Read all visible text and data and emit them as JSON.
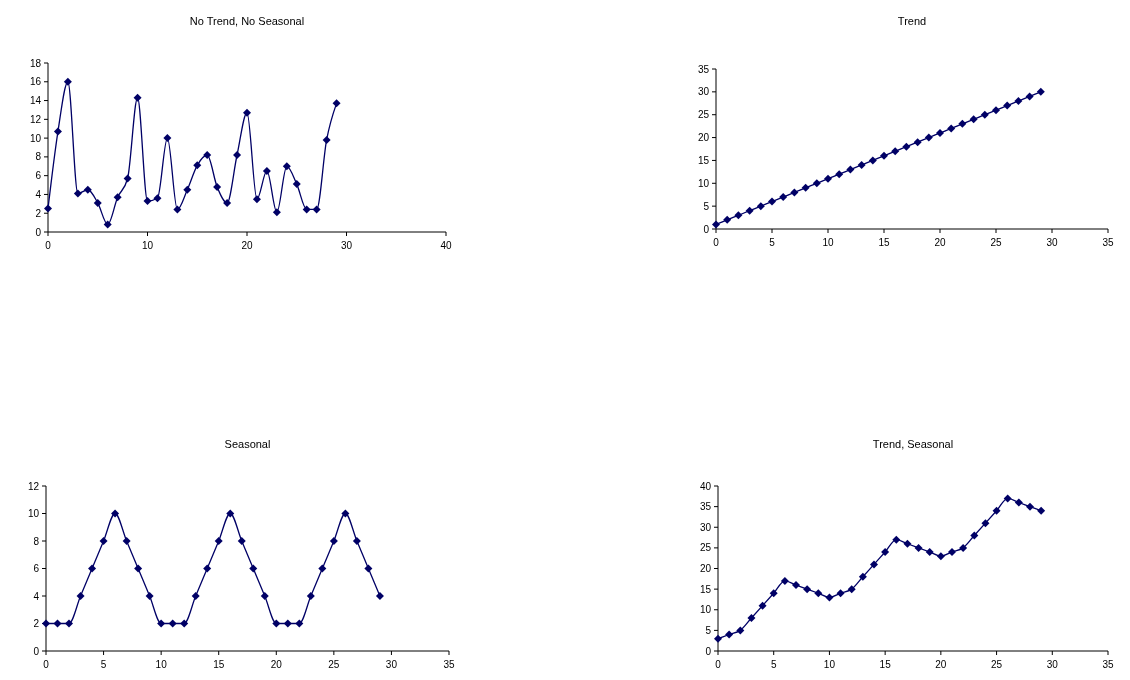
{
  "chart_data": [
    {
      "type": "line",
      "title": "No Trend, No Seasonal",
      "x": [
        0,
        1,
        2,
        3,
        4,
        5,
        6,
        7,
        8,
        9,
        10,
        11,
        12,
        13,
        14,
        15,
        16,
        17,
        18,
        19,
        20,
        21,
        22,
        23,
        24,
        25,
        26,
        27,
        28,
        29
      ],
      "series": [
        {
          "color": "#000066",
          "values": [
            2.5,
            10.7,
            16,
            4.1,
            4.5,
            3.1,
            0.8,
            3.7,
            5.7,
            14.3,
            3.3,
            3.6,
            10,
            2.4,
            4.5,
            7.1,
            8.2,
            4.8,
            3.1,
            8.2,
            12.7,
            3.5,
            6.5,
            2.1,
            7,
            5.1,
            2.4,
            2.4,
            9.8,
            13.7
          ]
        }
      ],
      "xlim": [
        0,
        40
      ],
      "xticks": [
        0,
        10,
        20,
        30,
        40
      ],
      "ylim": [
        0,
        18
      ],
      "yticks": [
        0,
        2,
        4,
        6,
        8,
        10,
        12,
        14,
        16,
        18
      ],
      "marker": "diamond",
      "grid": false
    },
    {
      "type": "line",
      "title": "Trend",
      "x": [
        0,
        1,
        2,
        3,
        4,
        5,
        6,
        7,
        8,
        9,
        10,
        11,
        12,
        13,
        14,
        15,
        16,
        17,
        18,
        19,
        20,
        21,
        22,
        23,
        24,
        25,
        26,
        27,
        28,
        29
      ],
      "series": [
        {
          "color": "#000066",
          "values": [
            1,
            2,
            3,
            4,
            5,
            6,
            7,
            8,
            9,
            10,
            11,
            12,
            13,
            14,
            15,
            16,
            17,
            18,
            19,
            20,
            21,
            22,
            23,
            24,
            25,
            26,
            27,
            28,
            29,
            30
          ]
        }
      ],
      "xlim": [
        0,
        35
      ],
      "xticks": [
        0,
        5,
        10,
        15,
        20,
        25,
        30,
        35
      ],
      "ylim": [
        0,
        35
      ],
      "yticks": [
        0,
        5,
        10,
        15,
        20,
        25,
        30,
        35
      ],
      "marker": "diamond",
      "grid": false
    },
    {
      "type": "line",
      "title": "Seasonal",
      "x": [
        0,
        1,
        2,
        3,
        4,
        5,
        6,
        7,
        8,
        9,
        10,
        11,
        12,
        13,
        14,
        15,
        16,
        17,
        18,
        19,
        20,
        21,
        22,
        23,
        24,
        25,
        26,
        27,
        28,
        29
      ],
      "series": [
        {
          "color": "#000066",
          "values": [
            2,
            2,
            2,
            4,
            6,
            8,
            10,
            8,
            6,
            4,
            2,
            2,
            2,
            4,
            6,
            8,
            10,
            8,
            6,
            4,
            2,
            2,
            2,
            4,
            6,
            8,
            10,
            8,
            6,
            4
          ]
        }
      ],
      "xlim": [
        0,
        35
      ],
      "xticks": [
        0,
        5,
        10,
        15,
        20,
        25,
        30,
        35
      ],
      "ylim": [
        0,
        12
      ],
      "yticks": [
        0,
        2,
        4,
        6,
        8,
        10,
        12
      ],
      "marker": "diamond",
      "grid": false
    },
    {
      "type": "line",
      "title": "Trend, Seasonal",
      "x": [
        0,
        1,
        2,
        3,
        4,
        5,
        6,
        7,
        8,
        9,
        10,
        11,
        12,
        13,
        14,
        15,
        16,
        17,
        18,
        19,
        20,
        21,
        22,
        23,
        24,
        25,
        26,
        27,
        28,
        29
      ],
      "series": [
        {
          "color": "#000066",
          "values": [
            3,
            4,
            5,
            8,
            11,
            14,
            17,
            16,
            15,
            14,
            13,
            14,
            15,
            18,
            21,
            24,
            27,
            26,
            25,
            24,
            23,
            24,
            25,
            28,
            31,
            34,
            37,
            36,
            35,
            34
          ]
        }
      ],
      "xlim": [
        0,
        35
      ],
      "xticks": [
        0,
        5,
        10,
        15,
        20,
        25,
        30,
        35
      ],
      "ylim": [
        0,
        40
      ],
      "yticks": [
        0,
        5,
        10,
        15,
        20,
        25,
        30,
        35,
        40
      ],
      "marker": "diamond",
      "grid": false
    }
  ]
}
